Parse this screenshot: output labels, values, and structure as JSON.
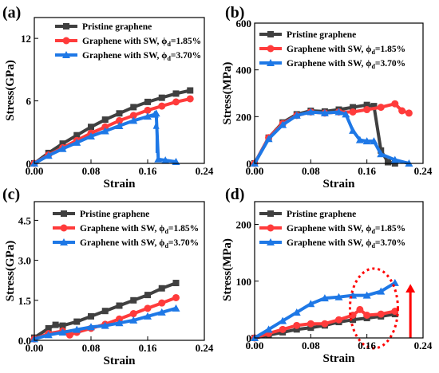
{
  "colors": {
    "pristine": "#404040",
    "sw185": "#ff3b3b",
    "sw370": "#1e78e6",
    "annotation": "#ff0000"
  },
  "chart_data": [
    {
      "panel": "(a)",
      "type": "line",
      "xlabel": "Strain",
      "ylabel": "Stress(GPa)",
      "xlim": [
        0,
        0.24
      ],
      "ylim": [
        0,
        14
      ],
      "xticks": [
        "0.00",
        "0.08",
        "0.16",
        "0.24"
      ],
      "yticks": [
        "0",
        "6",
        "12"
      ],
      "legend_position": "top-left",
      "series": [
        {
          "name": "Pristine graphene",
          "color_key": "pristine",
          "marker": "square",
          "x": [
            0,
            0.02,
            0.04,
            0.06,
            0.08,
            0.1,
            0.12,
            0.14,
            0.16,
            0.18,
            0.2,
            0.22
          ],
          "y": [
            0,
            1.0,
            1.9,
            2.7,
            3.5,
            4.2,
            4.8,
            5.4,
            5.9,
            6.3,
            6.7,
            7.0
          ]
        },
        {
          "name": "Graphene with SW, ",
          "phi": "1.85%",
          "color_key": "sw185",
          "marker": "circle",
          "x": [
            0,
            0.02,
            0.04,
            0.06,
            0.08,
            0.1,
            0.12,
            0.14,
            0.16,
            0.18,
            0.2,
            0.22
          ],
          "y": [
            0,
            0.8,
            1.5,
            2.2,
            2.9,
            3.5,
            4.1,
            4.6,
            5.1,
            5.5,
            5.9,
            6.2
          ]
        },
        {
          "name": "Graphene with SW, ",
          "phi": "3.70%",
          "color_key": "sw370",
          "marker": "triangle",
          "x": [
            0,
            0.02,
            0.04,
            0.06,
            0.08,
            0.1,
            0.12,
            0.14,
            0.16,
            0.17,
            0.172,
            0.175,
            0.185,
            0.2
          ],
          "y": [
            0,
            0.75,
            1.4,
            2.0,
            2.6,
            3.1,
            3.6,
            4.1,
            4.5,
            4.7,
            4.8,
            0.4,
            0.3,
            0.15
          ]
        }
      ]
    },
    {
      "panel": "(b)",
      "type": "line",
      "xlabel": "Strain",
      "ylabel": "Stress(MPa)",
      "xlim": [
        0,
        0.24
      ],
      "ylim": [
        0,
        600
      ],
      "xticks": [
        "0.00",
        "0.08",
        "0.16",
        "0.24"
      ],
      "yticks": [
        "0",
        "200",
        "400",
        "600"
      ],
      "legend_position": "top-left",
      "series": [
        {
          "name": "Pristine graphene",
          "color_key": "pristine",
          "marker": "square",
          "x": [
            0,
            0.02,
            0.04,
            0.06,
            0.08,
            0.1,
            0.12,
            0.14,
            0.16,
            0.17,
            0.18,
            0.19,
            0.2
          ],
          "y": [
            0,
            110,
            175,
            210,
            225,
            222,
            230,
            240,
            250,
            245,
            55,
            5,
            0
          ]
        },
        {
          "name": "Graphene with SW, ",
          "phi": "1.85%",
          "color_key": "sw185",
          "marker": "circle",
          "x": [
            0,
            0.02,
            0.04,
            0.06,
            0.08,
            0.1,
            0.12,
            0.14,
            0.16,
            0.18,
            0.2,
            0.21,
            0.22
          ],
          "y": [
            0,
            110,
            170,
            205,
            220,
            215,
            220,
            220,
            230,
            240,
            255,
            225,
            215
          ]
        },
        {
          "name": "Graphene with SW, ",
          "phi": "3.70%",
          "color_key": "sw370",
          "marker": "triangle",
          "x": [
            0,
            0.02,
            0.04,
            0.06,
            0.08,
            0.1,
            0.12,
            0.13,
            0.14,
            0.15,
            0.16,
            0.17,
            0.18,
            0.2,
            0.22
          ],
          "y": [
            0,
            105,
            165,
            205,
            220,
            215,
            220,
            210,
            140,
            100,
            95,
            95,
            40,
            15,
            0
          ]
        }
      ]
    },
    {
      "panel": "(c)",
      "type": "line",
      "xlabel": "Strain",
      "ylabel": "Stress(GPa)",
      "xlim": [
        0,
        0.24
      ],
      "ylim": [
        0,
        5.2
      ],
      "xticks": [
        "0.00",
        "0.08",
        "0.16",
        "0.24"
      ],
      "yticks": [
        "0.0",
        "1.5",
        "3.0",
        "4.5"
      ],
      "legend_position": "top-left",
      "series": [
        {
          "name": "Pristine graphene",
          "color_key": "pristine",
          "marker": "square",
          "x": [
            0,
            0.02,
            0.03,
            0.04,
            0.06,
            0.08,
            0.1,
            0.12,
            0.14,
            0.16,
            0.18,
            0.2
          ],
          "y": [
            0.1,
            0.45,
            0.58,
            0.55,
            0.7,
            0.9,
            1.1,
            1.3,
            1.5,
            1.7,
            1.95,
            2.15
          ]
        },
        {
          "name": "Graphene with SW, ",
          "phi": "1.85%",
          "color_key": "sw185",
          "marker": "circle",
          "x": [
            0,
            0.02,
            0.04,
            0.05,
            0.06,
            0.08,
            0.1,
            0.12,
            0.14,
            0.16,
            0.18,
            0.2
          ],
          "y": [
            0.05,
            0.25,
            0.35,
            0.2,
            0.3,
            0.45,
            0.6,
            0.8,
            1.0,
            1.2,
            1.4,
            1.6
          ]
        },
        {
          "name": "Graphene with SW, ",
          "phi": "3.70%",
          "color_key": "sw370",
          "marker": "triangle",
          "x": [
            0,
            0.02,
            0.04,
            0.06,
            0.08,
            0.1,
            0.12,
            0.14,
            0.16,
            0.18,
            0.2
          ],
          "y": [
            0.05,
            0.2,
            0.3,
            0.4,
            0.5,
            0.55,
            0.65,
            0.75,
            0.9,
            1.05,
            1.2
          ]
        }
      ]
    },
    {
      "panel": "(d)",
      "type": "line",
      "xlabel": "Strain",
      "ylabel": "Stress(MPa)",
      "xlim": [
        0,
        0.24
      ],
      "ylim": [
        0,
        240
      ],
      "xticks": [
        "0.00",
        "0.08",
        "0.16",
        "0.24"
      ],
      "yticks": [
        "0",
        "100",
        "200"
      ],
      "legend_position": "top-left",
      "annotations": [
        "red dotted ellipse around strain 0.14–0.20",
        "red upward arrow near strain 0.22"
      ],
      "series": [
        {
          "name": "Pristine graphene",
          "color_key": "pristine",
          "marker": "square",
          "x": [
            0,
            0.02,
            0.04,
            0.06,
            0.08,
            0.1,
            0.12,
            0.14,
            0.16,
            0.18,
            0.2
          ],
          "y": [
            0,
            5,
            10,
            15,
            18,
            22,
            28,
            32,
            35,
            38,
            42
          ]
        },
        {
          "name": "Graphene with SW, ",
          "phi": "1.85%",
          "color_key": "sw185",
          "marker": "circle",
          "x": [
            0,
            0.02,
            0.04,
            0.06,
            0.08,
            0.1,
            0.12,
            0.14,
            0.15,
            0.16,
            0.18,
            0.2
          ],
          "y": [
            0,
            8,
            15,
            22,
            25,
            25,
            32,
            40,
            50,
            40,
            42,
            47
          ]
        },
        {
          "name": "Graphene with SW, ",
          "phi": "3.70%",
          "color_key": "sw370",
          "marker": "triangle",
          "x": [
            0,
            0.02,
            0.04,
            0.06,
            0.08,
            0.1,
            0.12,
            0.14,
            0.16,
            0.18,
            0.2
          ],
          "y": [
            0,
            15,
            30,
            45,
            60,
            70,
            72,
            75,
            75,
            82,
            97
          ]
        }
      ]
    }
  ],
  "phi_symbol": "ϕ",
  "phi_subscript": "d",
  "phi_eq": "="
}
